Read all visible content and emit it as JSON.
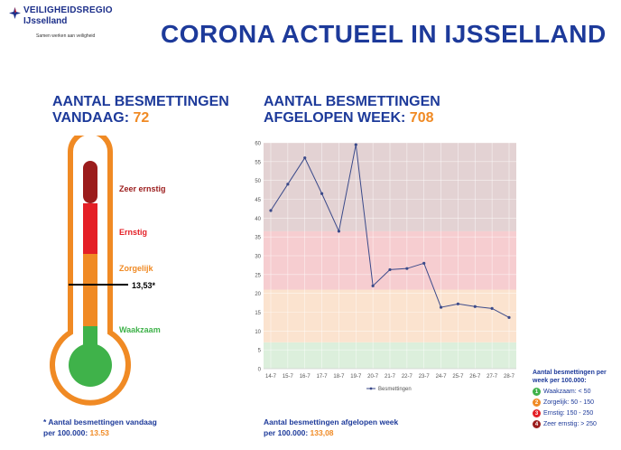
{
  "brand": {
    "name_top": "VEILIGHEIDSREGIO",
    "name_bottom": "IJsselland",
    "tagline": "Samen werken aan veiligheid"
  },
  "title": "CORONA ACTUEEL IN IJSSELLAND",
  "today": {
    "label_line1": "AANTAL BESMETTINGEN",
    "label_line2": "VANDAAG:",
    "value": "72"
  },
  "week": {
    "label_line1": "AANTAL BESMETTINGEN",
    "label_line2": "AFGELOPEN WEEK:",
    "value": "708"
  },
  "thermometer": {
    "levels": [
      "Zeer ernstig",
      "Ernstig",
      "Zorgelijk",
      "Waakzaam"
    ],
    "marker_label": "13,53*",
    "marker_value": 13.53,
    "colors": {
      "outline": "#f08a24",
      "zeer_ernstig": "#9b1c1c",
      "ernstig": "#e41f26",
      "zorgelijk": "#f08a24",
      "waakzaam": "#3fb24a"
    }
  },
  "footnote_left": {
    "line1": "* Aantal besmettingen vandaag",
    "line2_prefix": "per 100.000:",
    "value": "13.53"
  },
  "footnote_right": {
    "line1": "Aantal besmettingen afgelopen week",
    "line2_prefix": "per 100.000:",
    "value": "133,08"
  },
  "legend": {
    "title_line1": "Aantal besmettingen per",
    "title_line2": "week per 100.000:",
    "items": [
      {
        "num": "1",
        "label": "Waakzaam: < 50",
        "color": "#3fb24a"
      },
      {
        "num": "2",
        "label": "Zorgelijk: 50 - 150",
        "color": "#f08a24"
      },
      {
        "num": "3",
        "label": "Ernstig: 150 - 250",
        "color": "#e41f26"
      },
      {
        "num": "4",
        "label": "Zeer ernstig: > 250",
        "color": "#9b1c1c"
      }
    ]
  },
  "chart_data": {
    "type": "line",
    "categories": [
      "14-7",
      "15-7",
      "16-7",
      "17-7",
      "18-7",
      "19-7",
      "20-7",
      "21-7",
      "22-7",
      "23-7",
      "24-7",
      "25-7",
      "26-7",
      "27-7",
      "28-7"
    ],
    "series": [
      {
        "name": "Besmettingen",
        "values": [
          42,
          49,
          56,
          46.5,
          36.5,
          59.5,
          22,
          26.3,
          26.6,
          28,
          16.3,
          17.2,
          16.5,
          16,
          13.6
        ],
        "color": "#3b4a8a"
      }
    ],
    "ylim": [
      0,
      60
    ],
    "yticks": [
      0,
      5,
      10,
      15,
      20,
      25,
      30,
      35,
      40,
      45,
      50,
      55,
      60
    ],
    "bands": [
      {
        "from": 0,
        "to": 7,
        "color": "#dcefdc"
      },
      {
        "from": 7,
        "to": 21,
        "color": "#fbe3cf"
      },
      {
        "from": 21,
        "to": 36.5,
        "color": "#f6cdd0"
      },
      {
        "from": 36.5,
        "to": 60,
        "color": "#e3d2d3"
      }
    ],
    "grid": true,
    "legend_position": "bottom"
  }
}
